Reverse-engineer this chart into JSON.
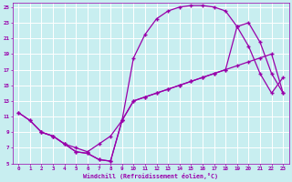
{
  "background_color": "#c8eef0",
  "grid_color": "#b0d8dc",
  "line_color": "#9900aa",
  "marker": "+",
  "xlabel": "Windchill (Refroidissement éolien,°C)",
  "xlim": [
    -0.5,
    23.5
  ],
  "ylim": [
    5,
    25.5
  ],
  "yticks": [
    5,
    7,
    9,
    11,
    13,
    15,
    17,
    19,
    21,
    23,
    25
  ],
  "xticks": [
    0,
    1,
    2,
    3,
    4,
    5,
    6,
    7,
    8,
    9,
    10,
    11,
    12,
    13,
    14,
    15,
    16,
    17,
    18,
    19,
    20,
    21,
    22,
    23
  ],
  "curve1_x": [
    0,
    1,
    2,
    3,
    4,
    5,
    6,
    7,
    8,
    9,
    10,
    11,
    12,
    13,
    14,
    15,
    16,
    17,
    18,
    19,
    20,
    21,
    22,
    23
  ],
  "curve1_y": [
    11.5,
    10.5,
    9.0,
    8.5,
    7.5,
    6.5,
    6.3,
    5.5,
    5.3,
    10.5,
    13.0,
    13.5,
    14.0,
    14.5,
    15.0,
    15.5,
    16.0,
    16.5,
    17.0,
    17.5,
    18.0,
    18.5,
    19.0,
    14.0
  ],
  "curve2_x": [
    0,
    1,
    2,
    3,
    4,
    5,
    6,
    7,
    8,
    9,
    10,
    11,
    12,
    13,
    14,
    15,
    16,
    17,
    18,
    19,
    20,
    21,
    22,
    23
  ],
  "curve2_y": [
    11.5,
    10.5,
    9.0,
    8.5,
    7.5,
    6.5,
    6.3,
    5.5,
    5.3,
    10.5,
    18.5,
    21.5,
    23.5,
    24.5,
    25.0,
    25.2,
    25.2,
    25.0,
    24.5,
    22.5,
    20.0,
    16.5,
    14.0,
    16.0
  ],
  "curve3_x": [
    2,
    3,
    4,
    5,
    6,
    7,
    8,
    9,
    10,
    11,
    12,
    13,
    14,
    15,
    16,
    17,
    18,
    19,
    20,
    21,
    22,
    23
  ],
  "curve3_y": [
    9.0,
    8.5,
    7.5,
    7.0,
    6.5,
    7.5,
    8.5,
    10.5,
    13.0,
    13.5,
    14.0,
    14.5,
    15.0,
    15.5,
    16.0,
    16.5,
    17.0,
    22.5,
    23.0,
    20.5,
    16.5,
    14.0
  ]
}
